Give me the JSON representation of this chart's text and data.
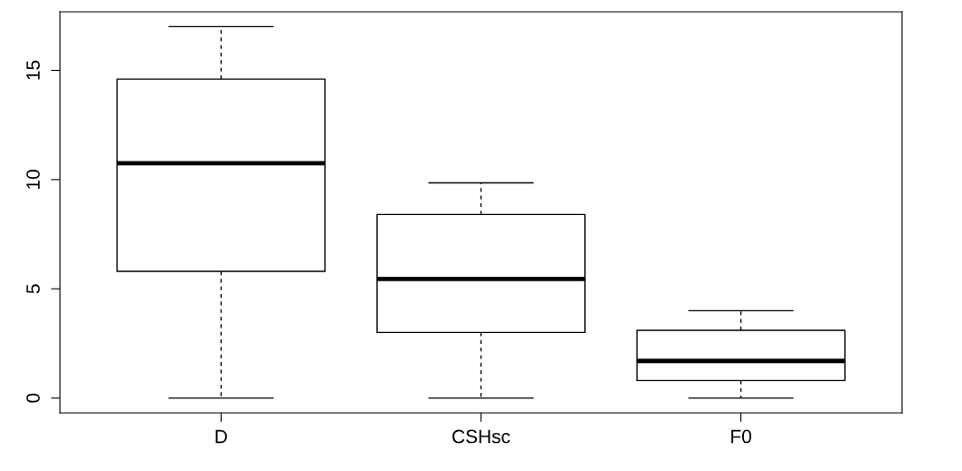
{
  "chart_data": {
    "type": "box",
    "categories": [
      "D",
      "CSHsc",
      "F0"
    ],
    "boxes": [
      {
        "low": 0,
        "q1": 5.8,
        "median": 10.75,
        "q3": 14.6,
        "high": 17
      },
      {
        "low": 0,
        "q1": 3,
        "median": 5.45,
        "q3": 8.4,
        "high": 9.85
      },
      {
        "low": 0,
        "q1": 0.8,
        "median": 1.7,
        "q3": 3.1,
        "high": 4
      }
    ],
    "color": "#000000",
    "ylim": [
      -0.68,
      17.68
    ],
    "yticks": [
      0,
      5,
      10,
      15
    ],
    "grid": false,
    "legend": false
  }
}
